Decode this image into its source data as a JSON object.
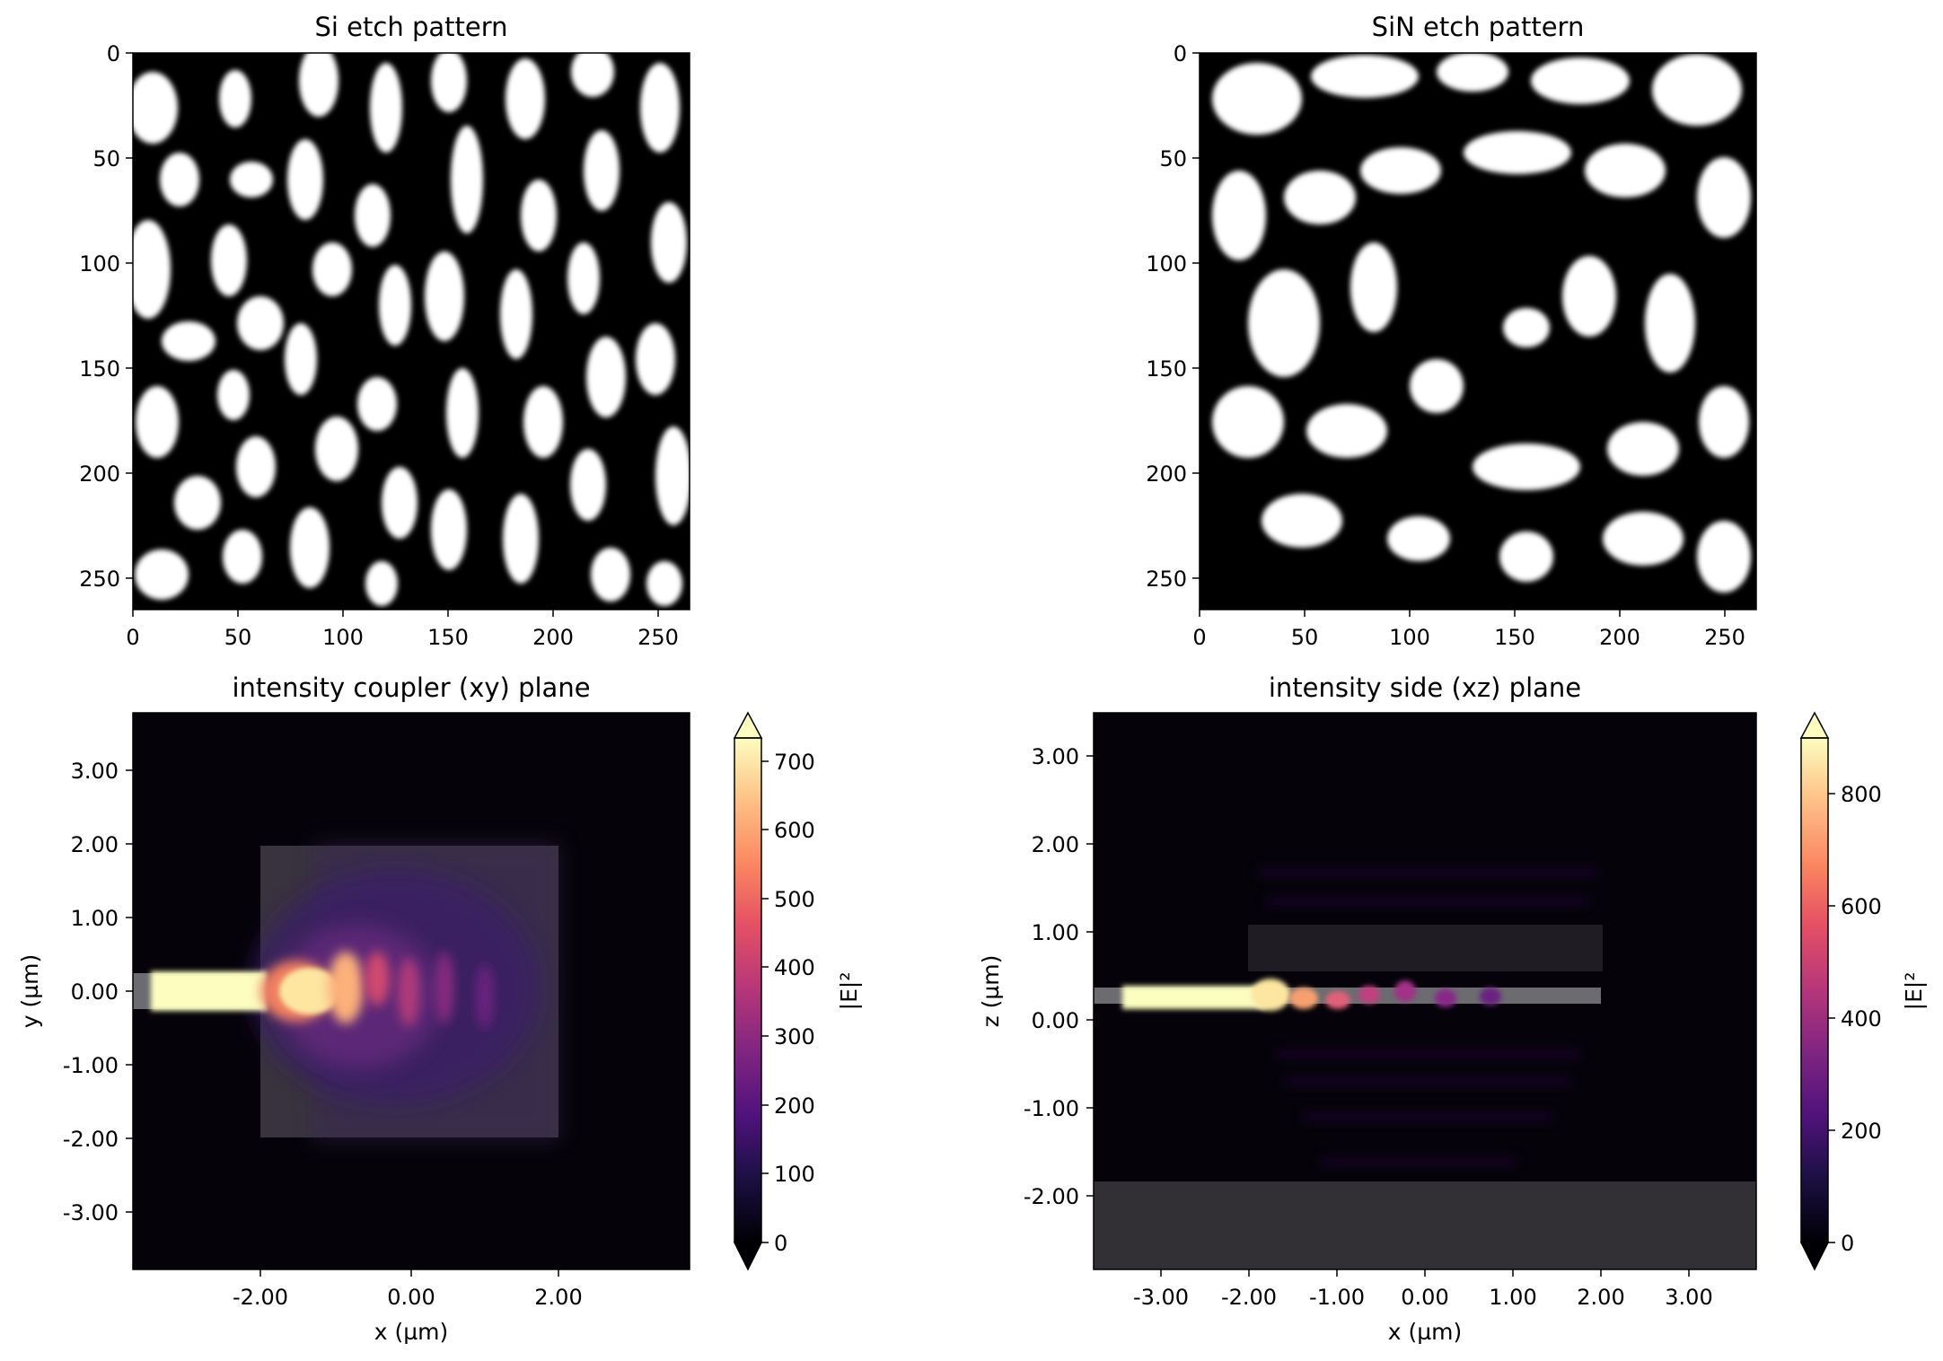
{
  "chart_data": [
    {
      "type": "heatmap",
      "title": "Si etch pattern",
      "xlabel": "",
      "ylabel": "",
      "xlim": [
        0,
        265
      ],
      "ylim": [
        265,
        0
      ],
      "xticks": [
        "0",
        "50",
        "100",
        "150",
        "200",
        "250"
      ],
      "yticks": [
        "0",
        "50",
        "100",
        "150",
        "200",
        "250"
      ],
      "colormap": "greys",
      "values_range": [
        0,
        1
      ],
      "grid": false
    },
    {
      "type": "heatmap",
      "title": "SiN etch pattern",
      "xlabel": "",
      "ylabel": "",
      "xlim": [
        0,
        265
      ],
      "ylim": [
        265,
        0
      ],
      "xticks": [
        "0",
        "50",
        "100",
        "150",
        "200",
        "250"
      ],
      "yticks": [
        "0",
        "50",
        "100",
        "150",
        "200",
        "250"
      ],
      "colormap": "greys",
      "values_range": [
        0,
        1
      ],
      "grid": false
    },
    {
      "type": "heatmap",
      "title": "intensity coupler (xy) plane",
      "xlabel": "x (µm)",
      "ylabel": "y (µm)",
      "xlim": [
        -3.75,
        3.75
      ],
      "ylim": [
        -3.75,
        3.75
      ],
      "xticks": [
        "-2.00",
        "0.00",
        "2.00"
      ],
      "yticks": [
        "3.00",
        "2.00",
        "1.00",
        "0.00",
        "-1.00",
        "-2.00",
        "-3.00"
      ],
      "colorbar": {
        "label": "|E|²",
        "range": [
          0,
          750
        ],
        "ticks": [
          "0",
          "100",
          "200",
          "300",
          "400",
          "500",
          "600",
          "700"
        ],
        "colormap": "magma",
        "extend": "both"
      },
      "grid": false
    },
    {
      "type": "heatmap",
      "title": "intensity side (xz) plane",
      "xlabel": "x (µm)",
      "ylabel": "z (µm)",
      "xlim": [
        -3.75,
        3.75
      ],
      "ylim": [
        -2.85,
        3.5
      ],
      "xticks": [
        "-3.00",
        "-2.00",
        "-1.00",
        "0.00",
        "1.00",
        "2.00",
        "3.00"
      ],
      "yticks": [
        "3.00",
        "2.00",
        "1.00",
        "0.00",
        "-1.00",
        "-2.00"
      ],
      "colorbar": {
        "label": "|E|²",
        "range": [
          0,
          900
        ],
        "ticks": [
          "0",
          "200",
          "400",
          "600",
          "800"
        ],
        "colormap": "magma",
        "extend": "both"
      },
      "grid": false
    }
  ]
}
